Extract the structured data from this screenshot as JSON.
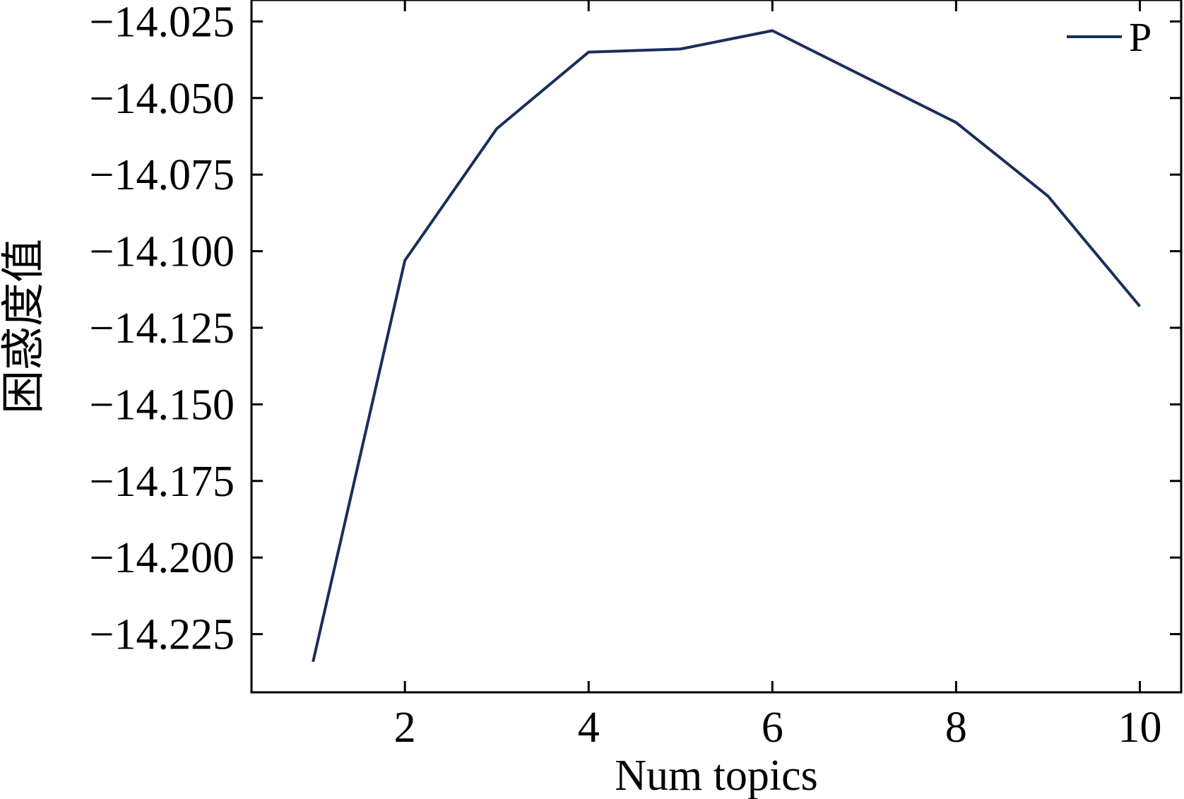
{
  "chart_data": {
    "type": "line",
    "xlabel": "Num topics",
    "ylabel": "困惑度值",
    "x": [
      1,
      2,
      3,
      4,
      5,
      6,
      7,
      8,
      9,
      10
    ],
    "series": [
      {
        "name": "P",
        "color": "#1a2e5c",
        "values": [
          -14.234,
          -14.103,
          -14.06,
          -14.035,
          -14.034,
          -14.028,
          -14.043,
          -14.058,
          -14.082,
          -14.118
        ]
      }
    ],
    "xlim": [
      0.33,
      10.45
    ],
    "ylim": [
      -14.244,
      -14.018
    ],
    "xticks": [
      2,
      4,
      6,
      8,
      10
    ],
    "xtick_labels": [
      "2",
      "4",
      "6",
      "8",
      "10"
    ],
    "yticks": [
      -14.025,
      -14.05,
      -14.075,
      -14.1,
      -14.125,
      -14.15,
      -14.175,
      -14.2,
      -14.225
    ],
    "ytick_labels": [
      "−14.025",
      "−14.050",
      "−14.075",
      "−14.100",
      "−14.125",
      "−14.150",
      "−14.175",
      "−14.200",
      "−14.225"
    ],
    "grid": false,
    "legend": {
      "position": "top-right",
      "entries": [
        "P"
      ]
    }
  }
}
